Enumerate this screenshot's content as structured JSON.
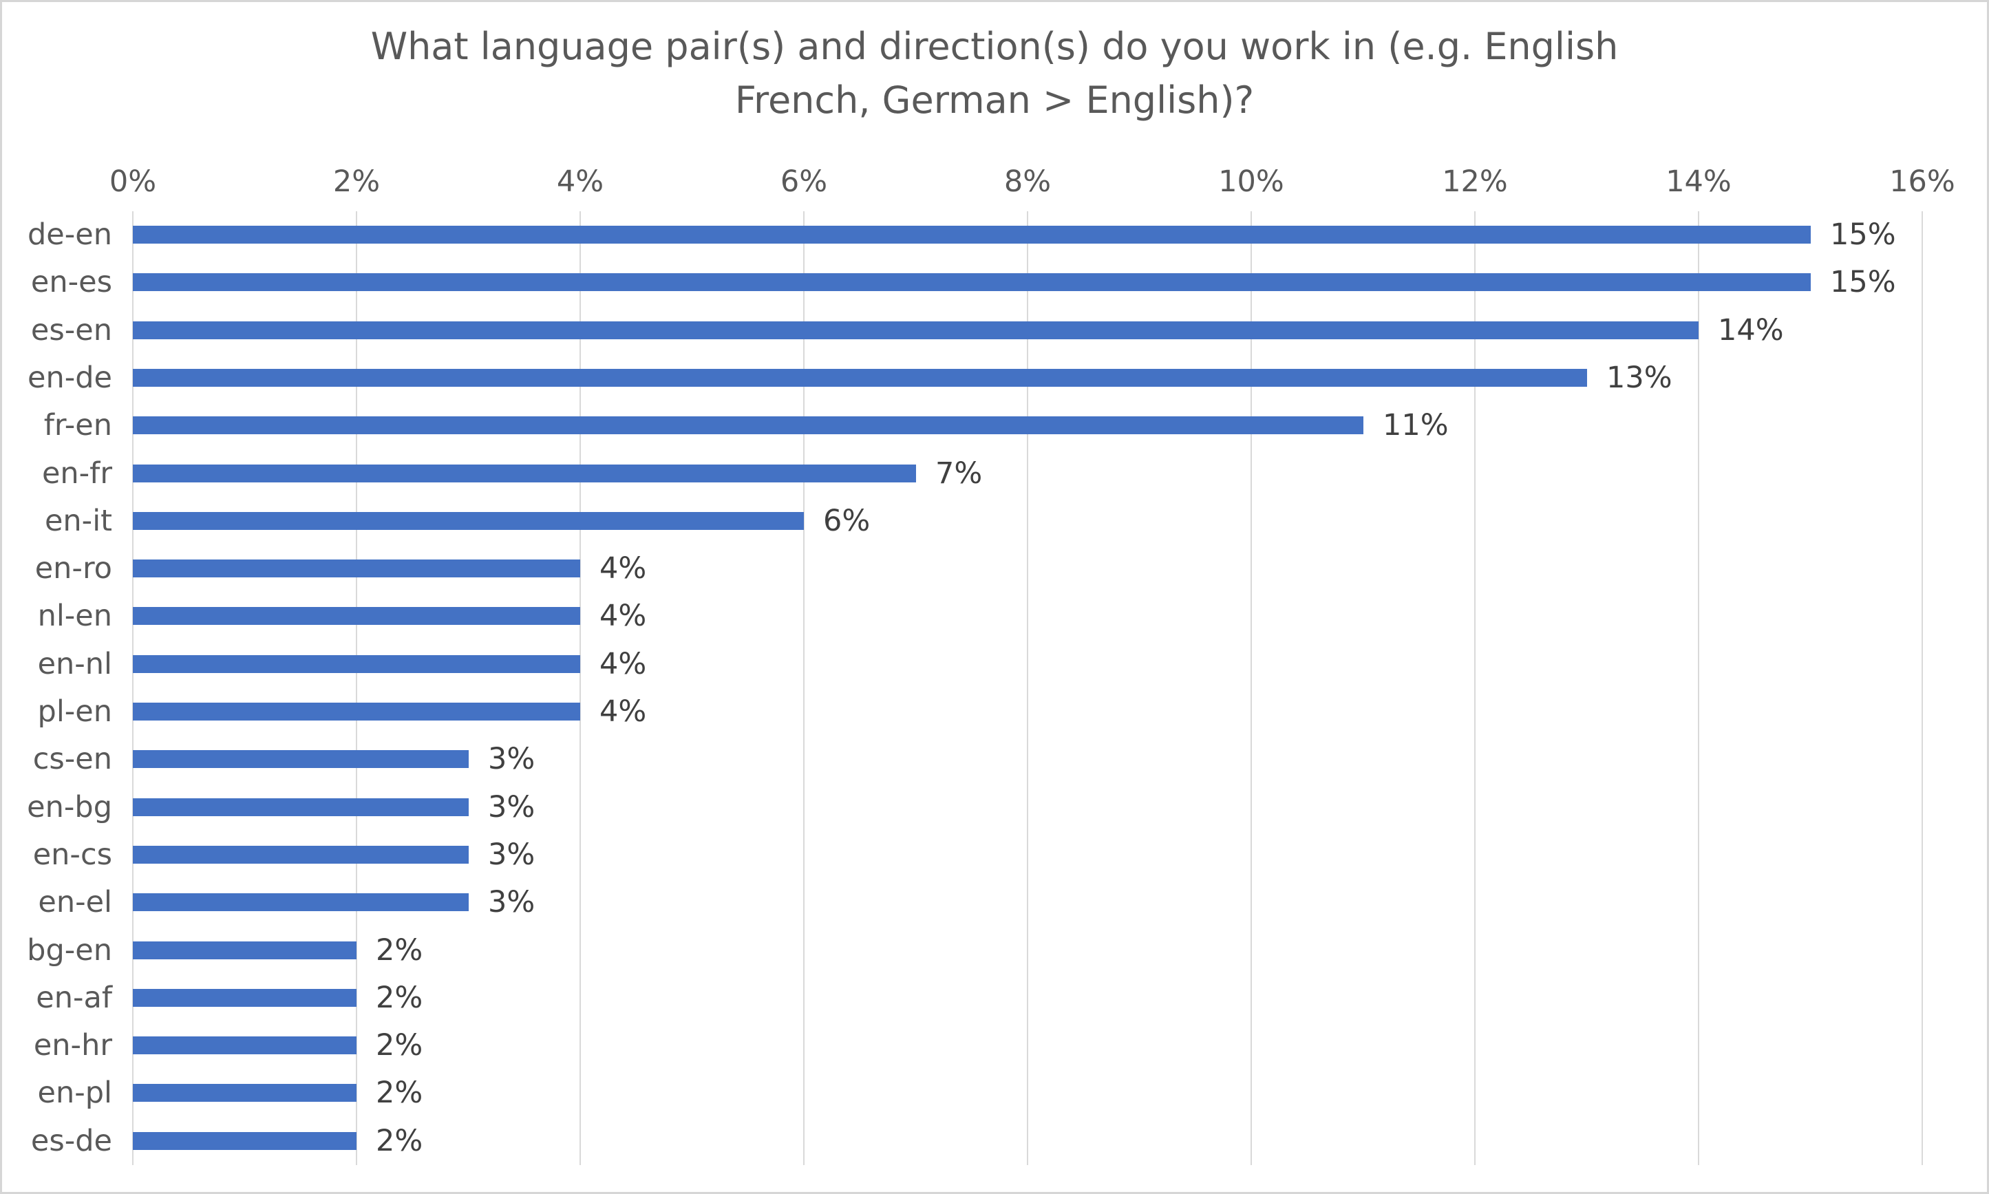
{
  "chart_data": {
    "type": "bar",
    "orientation": "horizontal",
    "title": "What language pair(s) and direction(s) do you work in (e.g. English French, German > English)?",
    "title_line1": "What language pair(s) and direction(s) do you work in (e.g. English",
    "title_line2": "French, German > English)?",
    "categories": [
      "de-en",
      "en-es",
      "es-en",
      "en-de",
      "fr-en",
      "en-fr",
      "en-it",
      "en-ro",
      "nl-en",
      "en-nl",
      "pl-en",
      "cs-en",
      "en-bg",
      "en-cs",
      "en-el",
      "bg-en",
      "en-af",
      "en-hr",
      "en-pl",
      "es-de"
    ],
    "values": [
      15,
      15,
      14,
      13,
      11,
      7,
      6,
      4,
      4,
      4,
      4,
      3,
      3,
      3,
      3,
      2,
      2,
      2,
      2,
      2
    ],
    "value_labels": [
      "15%",
      "15%",
      "14%",
      "13%",
      "11%",
      "7%",
      "6%",
      "4%",
      "4%",
      "4%",
      "4%",
      "3%",
      "3%",
      "3%",
      "3%",
      "2%",
      "2%",
      "2%",
      "2%",
      "2%"
    ],
    "x_ticks": [
      "0%",
      "2%",
      "4%",
      "6%",
      "8%",
      "10%",
      "12%",
      "14%",
      "16%"
    ],
    "xlabel": "",
    "ylabel": "",
    "xlim": [
      0,
      16
    ],
    "tick_step": 2,
    "grid": true,
    "legend_position": "none",
    "colors": {
      "bar": "#4472C4",
      "gridline": "#D9D9D9",
      "axis_text": "#595959",
      "title_text": "#595959",
      "value_label_text": "#404040",
      "background": "#FFFFFF",
      "border": "#D6D6D6"
    }
  }
}
